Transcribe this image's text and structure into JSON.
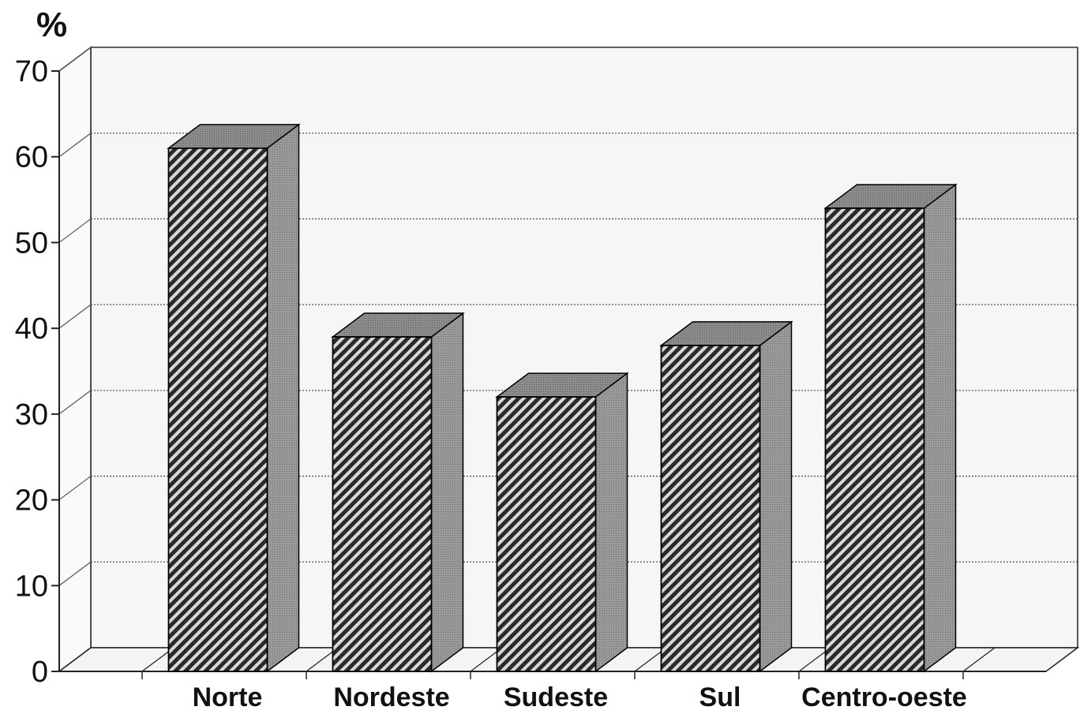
{
  "chart_data": {
    "type": "bar",
    "title": "",
    "xlabel": "",
    "ylabel": "%",
    "categories": [
      "Norte",
      "Nordeste",
      "Sudeste",
      "Sul",
      "Centro-oeste"
    ],
    "values": [
      61,
      39,
      32,
      38,
      54
    ],
    "ylim": [
      0,
      70
    ],
    "yticks": [
      0,
      10,
      20,
      30,
      40,
      50,
      60,
      70
    ],
    "grid": true,
    "style": "3d-hatched",
    "legend": "none"
  },
  "colors": {
    "bar_front_stripe_dark": "#2a2a2a",
    "bar_front_stripe_light": "#d8d8d8",
    "bar_side": "#9a9a9a",
    "bar_top": "#8c8c8c",
    "floor": "#f4f4f4",
    "back_wall": "#f6f6f6",
    "gridline": "#555555",
    "axis": "#222222"
  }
}
